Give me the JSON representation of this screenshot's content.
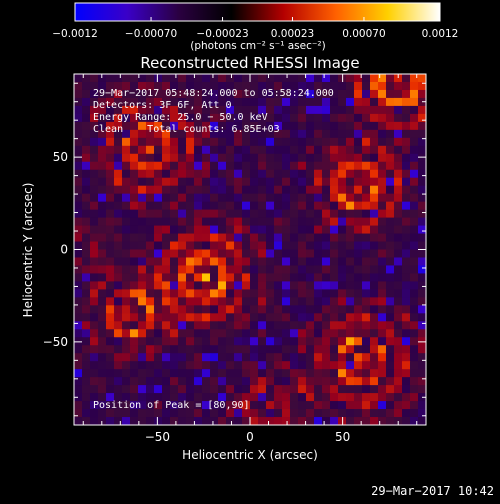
{
  "chart_data": {
    "type": "heatmap",
    "title": "Reconstructed RHESSI Image",
    "xlabel": "Heliocentric X (arcsec)",
    "ylabel": "Heliocentric Y (arcsec)",
    "xlim": [
      -95,
      95
    ],
    "ylim": [
      -95,
      95
    ],
    "x_ticks": [
      -50,
      0,
      50
    ],
    "y_ticks": [
      -50,
      0,
      50
    ],
    "x_tick_labels": [
      "−50",
      "0",
      "50"
    ],
    "y_tick_labels": [
      "−50",
      "0",
      "50"
    ],
    "colorbar": {
      "ticks": [
        -0.0012,
        -0.0007,
        -0.00023,
        0.00023,
        0.0007,
        0.0012
      ],
      "tick_labels": [
        "−0.0012",
        "−0.00070",
        "−0.00023",
        "0.00023",
        "0.00070",
        "0.0012"
      ],
      "unit_label": "(photons cm⁻² s⁻¹ asec⁻²)",
      "range": [
        -0.0012,
        0.0012
      ],
      "colors": [
        "#0000ff",
        "#3a00c8",
        "#2a0040",
        "#000000",
        "#b40000",
        "#ff6000",
        "#ffd000",
        "#ffffff"
      ]
    },
    "annotations": [
      "29−Mar−2017 05:48:24.000 to 05:58:24.000",
      "Detectors: 3F 6F, Att 0",
      "Energy Range: 25.0 − 50.0 keV",
      "Clean    Total counts: 6.85E+03"
    ],
    "peak_label": "Position of Peak = [80,90]",
    "peak_position": [
      80,
      90
    ],
    "sources": [
      {
        "x": 80,
        "y": 90,
        "r": 18,
        "amp": 1.0
      },
      {
        "x": 58,
        "y": 35,
        "r": 18,
        "amp": 0.85
      },
      {
        "x": -55,
        "y": 55,
        "r": 20,
        "amp": 0.75
      },
      {
        "x": -25,
        "y": -15,
        "r": 20,
        "amp": 0.85
      },
      {
        "x": -65,
        "y": -35,
        "r": 16,
        "amp": 0.7
      },
      {
        "x": 60,
        "y": -60,
        "r": 20,
        "amp": 0.75
      },
      {
        "x": 10,
        "y": -85,
        "r": 14,
        "amp": 0.55
      },
      {
        "x": -85,
        "y": 0,
        "r": 10,
        "amp": 0.4
      }
    ]
  },
  "footer_date": "29−Mar−2017 10:42"
}
